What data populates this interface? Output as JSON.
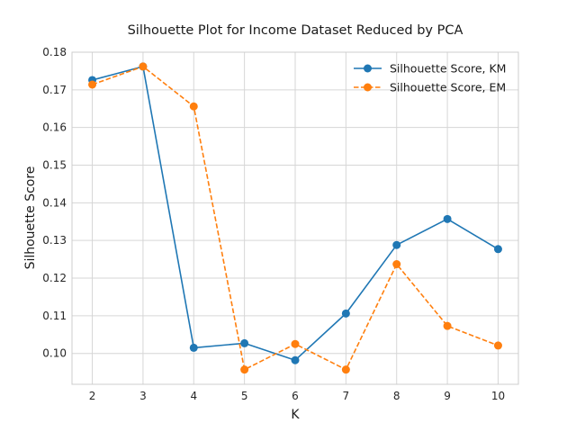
{
  "chart_data": {
    "type": "line",
    "title": "Silhouette Plot for Income Dataset Reduced by PCA",
    "xlabel": "K",
    "ylabel": "Silhouette Score",
    "x": [
      2,
      3,
      4,
      5,
      6,
      7,
      8,
      9,
      10
    ],
    "xticks": [
      "2",
      "3",
      "4",
      "5",
      "6",
      "7",
      "8",
      "9",
      "10"
    ],
    "xlim": [
      1.6,
      10.4
    ],
    "ylim": [
      0.0918,
      0.18
    ],
    "yticks": [
      "0.10",
      "0.11",
      "0.12",
      "0.13",
      "0.14",
      "0.15",
      "0.16",
      "0.17",
      "0.18"
    ],
    "ytick_values": [
      0.1,
      0.11,
      0.12,
      0.13,
      0.14,
      0.15,
      0.16,
      0.17,
      0.18
    ],
    "grid": true,
    "legend_position": "top-right",
    "series": [
      {
        "name": "Silhouette Score, KM",
        "values": [
          0.1726,
          0.1762,
          0.1015,
          0.1027,
          0.0982,
          0.1106,
          0.1288,
          0.1357,
          0.1277
        ],
        "color": "#1f77b4",
        "line_style": "solid"
      },
      {
        "name": "Silhouette Score, EM",
        "values": [
          0.1714,
          0.1762,
          0.1656,
          0.0957,
          0.1025,
          0.0957,
          0.1237,
          0.1073,
          0.1021
        ],
        "color": "#ff7f0e",
        "line_style": "dashed"
      }
    ]
  }
}
